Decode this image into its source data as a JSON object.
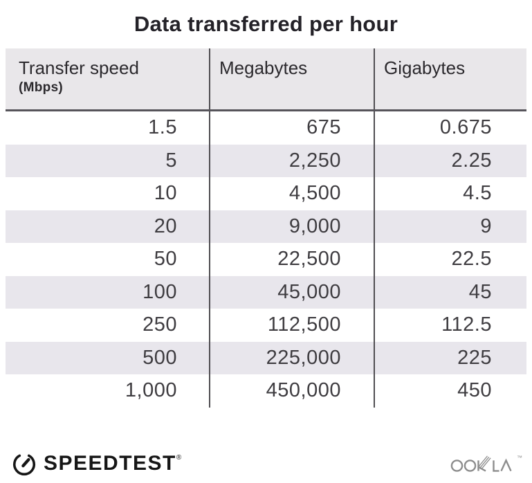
{
  "title": "Data transferred per hour",
  "chart_data": {
    "type": "table",
    "title": "Data transferred per hour",
    "columns": [
      "Transfer speed (Mbps)",
      "Megabytes",
      "Gigabytes"
    ],
    "rows": [
      [
        1.5,
        675,
        0.675
      ],
      [
        5,
        2250,
        2.25
      ],
      [
        10,
        4500,
        4.5
      ],
      [
        20,
        9000,
        9
      ],
      [
        50,
        22500,
        22.5
      ],
      [
        100,
        45000,
        45
      ],
      [
        250,
        112500,
        112.5
      ],
      [
        500,
        225000,
        225
      ],
      [
        1000,
        450000,
        450
      ]
    ]
  },
  "table": {
    "columns": [
      {
        "label": "Transfer speed",
        "sublabel": "(Mbps)"
      },
      {
        "label": "Megabytes",
        "sublabel": ""
      },
      {
        "label": "Gigabytes",
        "sublabel": ""
      }
    ],
    "rows": [
      [
        "1.5",
        "675",
        "0.675"
      ],
      [
        "5",
        "2,250",
        "2.25"
      ],
      [
        "10",
        "4,500",
        "4.5"
      ],
      [
        "20",
        "9,000",
        "9"
      ],
      [
        "50",
        "22,500",
        "22.5"
      ],
      [
        "100",
        "45,000",
        "45"
      ],
      [
        "250",
        "112,500",
        "112.5"
      ],
      [
        "500",
        "225,000",
        "225"
      ],
      [
        "1,000",
        "450,000",
        "450"
      ]
    ]
  },
  "footer": {
    "brand": "SPEEDTEST",
    "brand_mark": "®",
    "attribution": "OOKLA",
    "attribution_mark": "™"
  },
  "colors": {
    "background": "#ffffff",
    "title_text": "#242228",
    "header_bg": "#e9e7ea",
    "header_text": "#2b292d",
    "header_rule": "#56545a",
    "column_divider": "#4f4d51",
    "row_shade": "#e8e6ec",
    "cell_text": "#3e3c40",
    "brand_black": "#161616",
    "ookla_gray": "#8d8d8d"
  }
}
